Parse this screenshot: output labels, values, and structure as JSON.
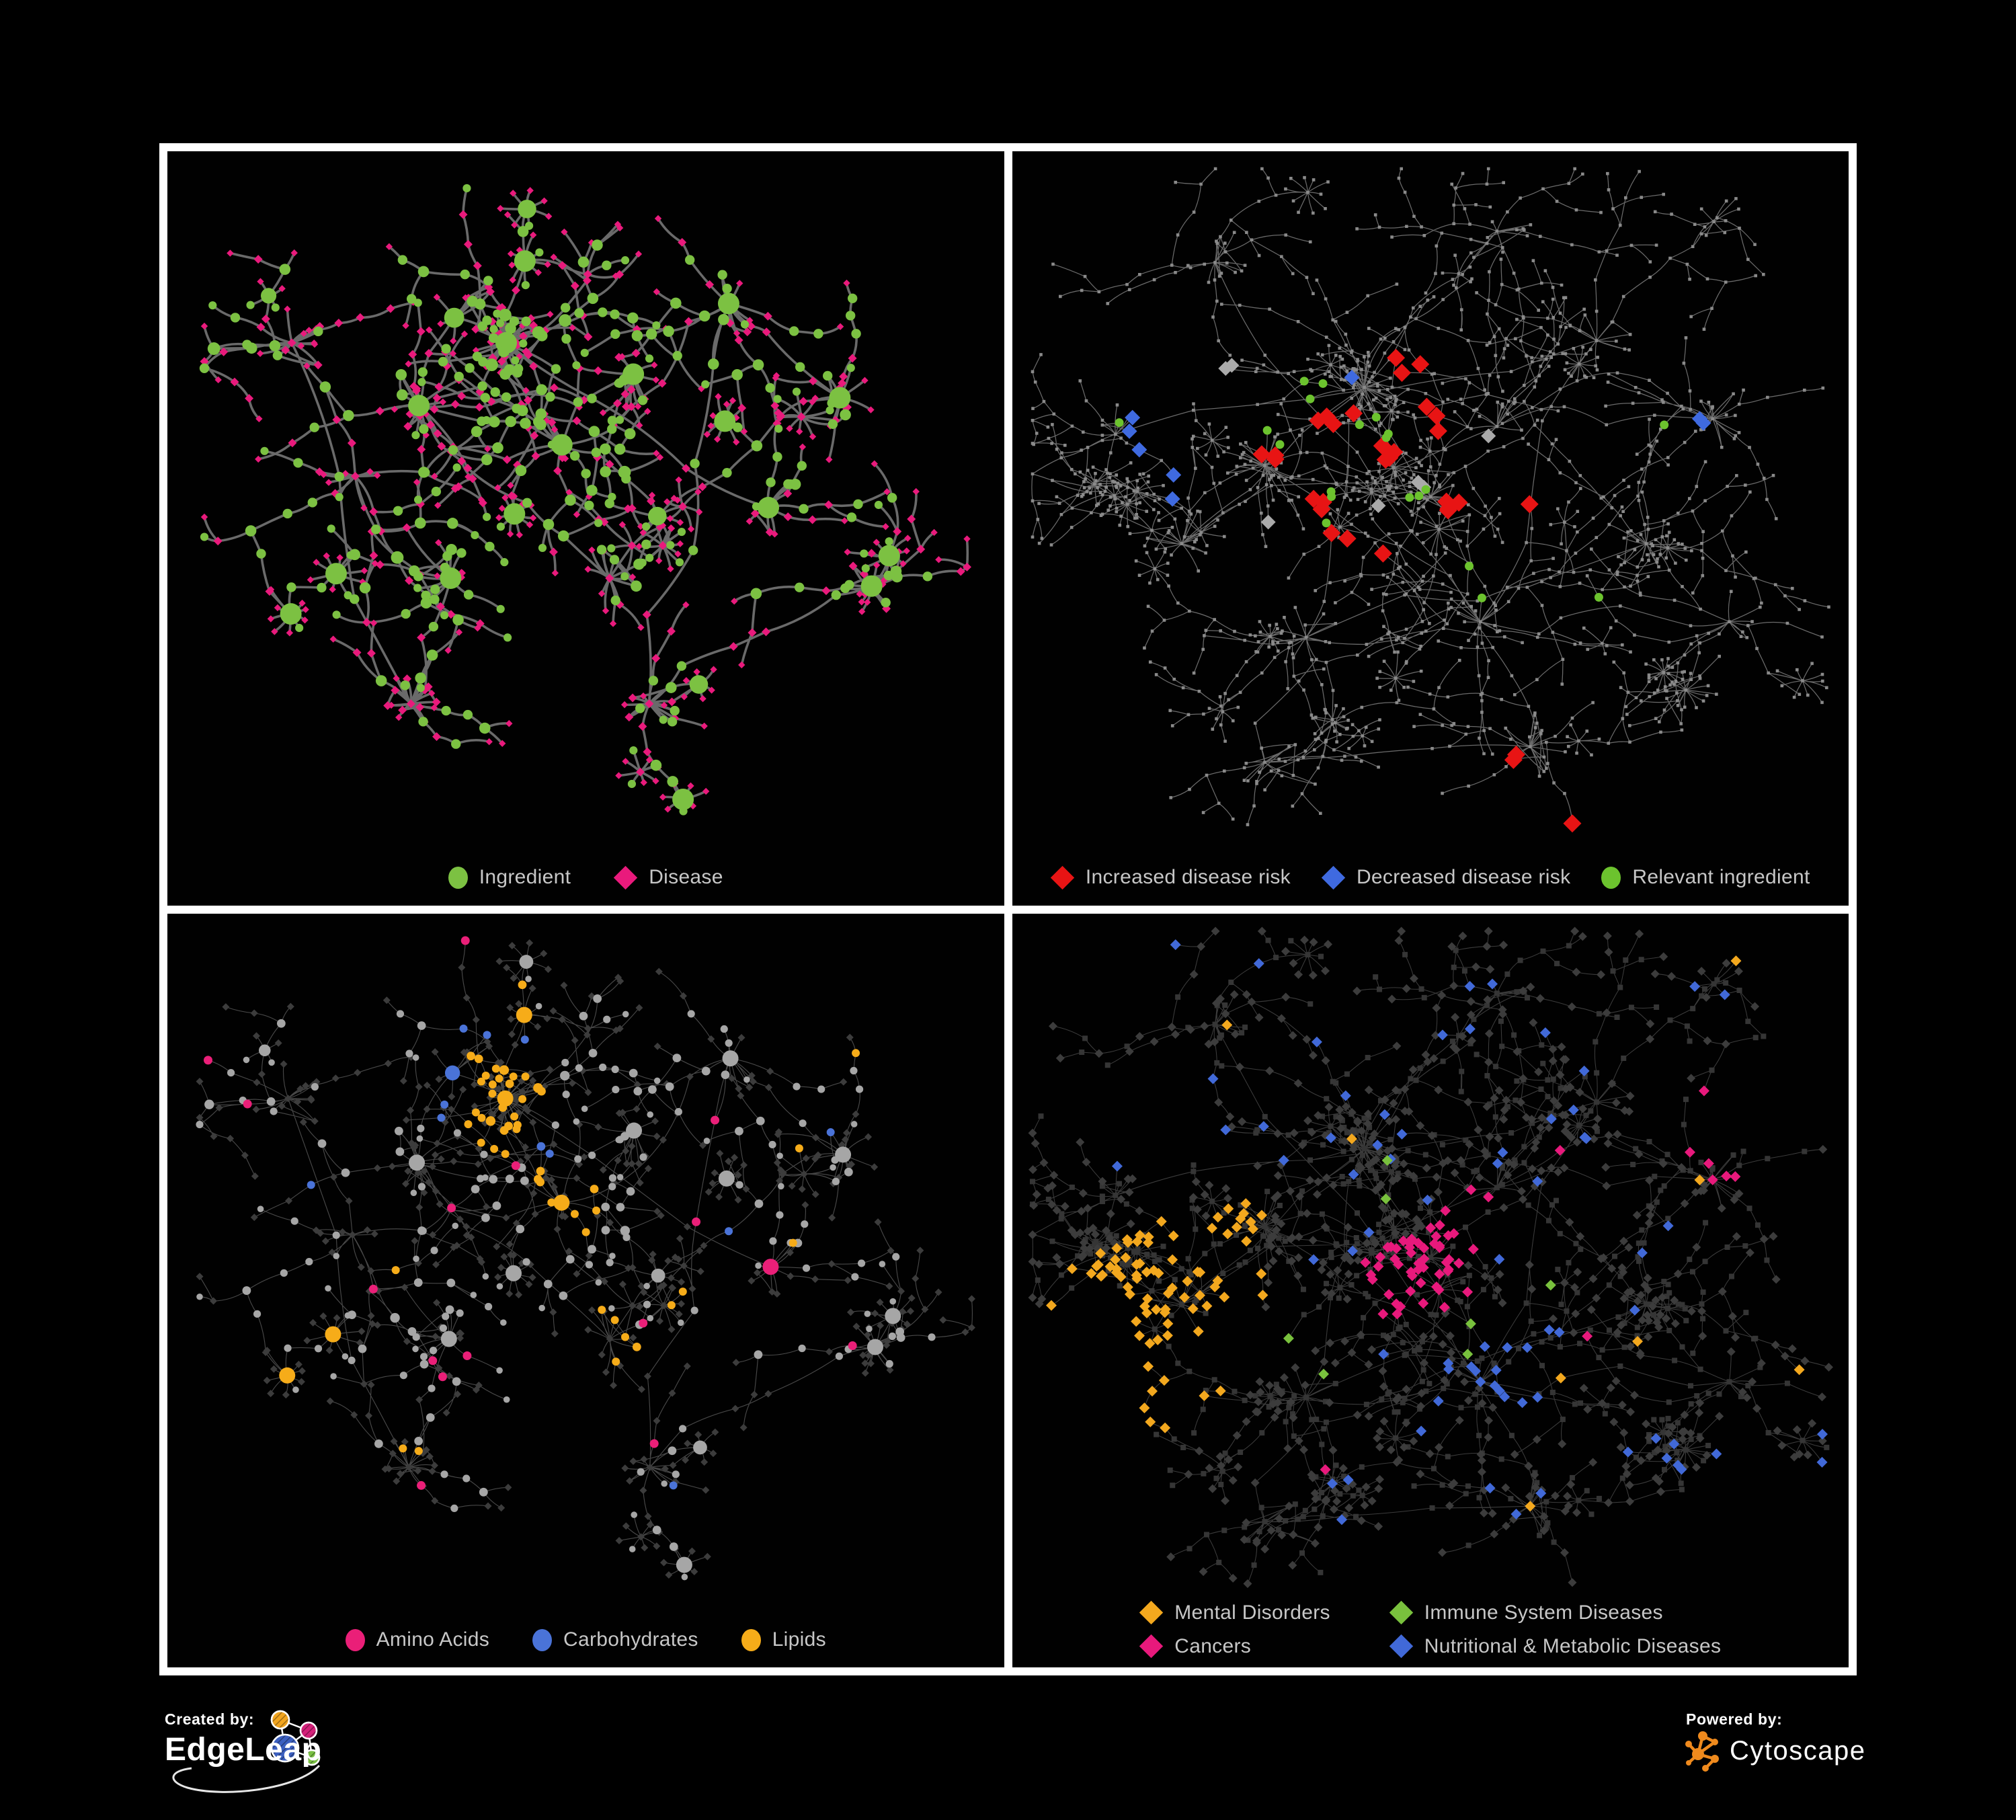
{
  "page": {
    "background": "#000000",
    "frame_color": "#ffffff",
    "panel_background": "#010101",
    "legend_text_color": "#c7c7c7"
  },
  "panels": [
    {
      "name": "ingredient-disease",
      "legend": [
        {
          "label": "Ingredient",
          "color": "#7cc142",
          "shape": "circle"
        },
        {
          "label": "Disease",
          "color": "#e91a7c",
          "shape": "diamond"
        }
      ]
    },
    {
      "name": "disease-risk",
      "legend_wide": true,
      "legend": [
        {
          "label": "Increased disease risk",
          "color": "#e81414",
          "shape": "diamond"
        },
        {
          "label": "Decreased disease risk",
          "color": "#3f6ae0",
          "shape": "diamond"
        },
        {
          "label": "Relevant ingredient",
          "color": "#6cc32e",
          "shape": "circle"
        }
      ]
    },
    {
      "name": "nutrient-classes",
      "legend": [
        {
          "label": "Amino Acids",
          "color": "#ea1f78",
          "shape": "circle"
        },
        {
          "label": "Carbohydrates",
          "color": "#4a73d8",
          "shape": "circle"
        },
        {
          "label": "Lipids",
          "color": "#f6ac19",
          "shape": "circle"
        }
      ]
    },
    {
      "name": "disease-classes",
      "legend_columns": 2,
      "legend": [
        {
          "label": "Mental Disorders",
          "color": "#f3a81e",
          "shape": "diamond"
        },
        {
          "label": "Immune System Diseases",
          "color": "#79c13d",
          "shape": "diamond"
        },
        {
          "label": "Cancers",
          "color": "#e8197c",
          "shape": "diamond"
        },
        {
          "label": "Nutritional & Metabolic Diseases",
          "color": "#4169d8",
          "shape": "diamond"
        }
      ]
    }
  ],
  "network_style": {
    "edge_bold": "#6a6a6a",
    "edge_fine": "#757575",
    "edge_light": "#8f8f8f",
    "tiny_node": "#8a8a8a",
    "light_node": "#a6a6a6",
    "dim_node": "#3c3c3c",
    "dim_node_dark": "#353535",
    "highlight_grey": "#aaaaaa"
  },
  "footer": {
    "created_by": {
      "label": "Created by:",
      "brand": "EdgeLeap"
    },
    "powered_by": {
      "label": "Powered by:",
      "brand": "Cytoscape"
    },
    "edgeleap_colors": {
      "orange": "#f2a51f",
      "pink": "#d4217a",
      "blue": "#3b5fc0",
      "green": "#7ac143"
    },
    "cytoscape_orange": "#ef8a1d"
  }
}
